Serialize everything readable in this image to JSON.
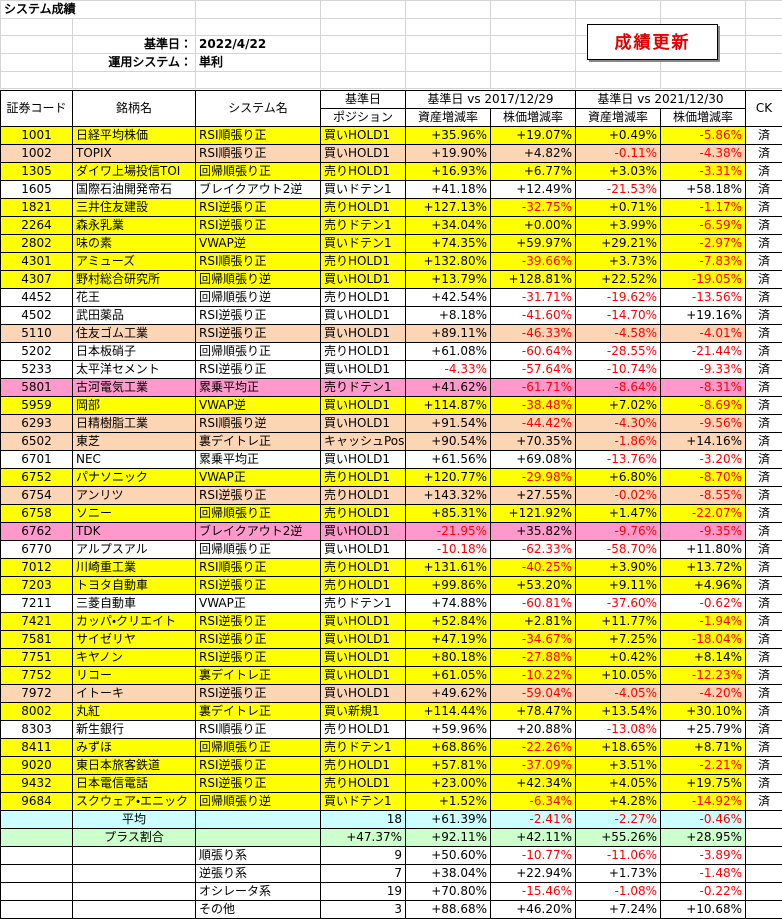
{
  "header": {
    "title": "システム成績",
    "button": "成績更新",
    "base_date_label": "基準日：",
    "base_date": "2022/4/22",
    "system_label": "運用システム：",
    "system": "単利"
  },
  "table": {
    "columns": [
      "証券コード",
      "銘柄名",
      "システム名",
      "ポジション",
      "資産増減率",
      "株価増減率",
      "資産増減率",
      "株価増減率",
      "CK"
    ],
    "groups": [
      "基準日",
      "基準日 vs 2017/12/29",
      "基準日 vs 2021/12/30"
    ],
    "rows": [
      {
        "code": "1001",
        "name": "日経平均株価",
        "system": "RSI順張り正",
        "position": "買いHOLD1",
        "values": [
          "+35.96%",
          "+19.07%",
          "+0.49%",
          "-5.86%"
        ],
        "ck": "済",
        "color": "#ffff00"
      },
      {
        "code": "1002",
        "name": "TOPIX",
        "system": "RSI順張り正",
        "position": "買いHOLD1",
        "values": [
          "+19.90%",
          "+4.82%",
          "-0.11%",
          "-4.38%"
        ],
        "ck": "済",
        "color": "#fcd5b4"
      },
      {
        "code": "1305",
        "name": "ダイワ上場投信TOI",
        "system": "回帰順張り正",
        "position": "売りHOLD1",
        "values": [
          "+16.93%",
          "+6.77%",
          "+3.03%",
          "-3.31%"
        ],
        "ck": "済",
        "color": "#ffff00"
      },
      {
        "code": "1605",
        "name": "国際石油開発帝石",
        "system": "ブレイクアウト2逆",
        "position": "買いドテン1",
        "values": [
          "+41.18%",
          "+12.49%",
          "-21.53%",
          "+58.18%"
        ],
        "ck": "済",
        "color": "#ffffff"
      },
      {
        "code": "1821",
        "name": "三井住友建設",
        "system": "RSI逆張り正",
        "position": "売りHOLD1",
        "values": [
          "+127.13%",
          "-32.75%",
          "+0.71%",
          "-1.17%"
        ],
        "ck": "済",
        "color": "#ffff00"
      },
      {
        "code": "2264",
        "name": "森永乳業",
        "system": "RSI逆張り正",
        "position": "売りドテン1",
        "values": [
          "+34.04%",
          "+0.00%",
          "+3.99%",
          "-6.59%"
        ],
        "ck": "済",
        "color": "#ffff00"
      },
      {
        "code": "2802",
        "name": "味の素",
        "system": "VWAP逆",
        "position": "買いドテン1",
        "values": [
          "+74.35%",
          "+59.97%",
          "+29.21%",
          "-2.97%"
        ],
        "ck": "済",
        "color": "#ffff00"
      },
      {
        "code": "4301",
        "name": "アミューズ",
        "system": "RSI順張り正",
        "position": "売りHOLD1",
        "values": [
          "+132.80%",
          "-39.66%",
          "+3.73%",
          "-7.83%"
        ],
        "ck": "済",
        "color": "#ffff00"
      },
      {
        "code": "4307",
        "name": "野村総合研究所",
        "system": "回帰順張り逆",
        "position": "買いHOLD1",
        "values": [
          "+13.79%",
          "+128.81%",
          "+22.52%",
          "-19.05%"
        ],
        "ck": "済",
        "color": "#ffff00"
      },
      {
        "code": "4452",
        "name": "花王",
        "system": "回帰順張り逆",
        "position": "売りHOLD1",
        "values": [
          "+42.54%",
          "-31.71%",
          "-19.62%",
          "-13.56%"
        ],
        "ck": "済",
        "color": "#ffffff"
      },
      {
        "code": "4502",
        "name": "武田薬品",
        "system": "RSI逆張り正",
        "position": "買いHOLD1",
        "values": [
          "+8.18%",
          "-41.60%",
          "-14.70%",
          "+19.16%"
        ],
        "ck": "済",
        "color": "#ffffff"
      },
      {
        "code": "5110",
        "name": "住友ゴム工業",
        "system": "RSI逆張り正",
        "position": "買いHOLD1",
        "values": [
          "+89.11%",
          "-46.33%",
          "-4.58%",
          "-4.01%"
        ],
        "ck": "済",
        "color": "#fcd5b4"
      },
      {
        "code": "5202",
        "name": "日本板硝子",
        "system": "回帰順張り正",
        "position": "売りHOLD1",
        "values": [
          "+61.08%",
          "-60.64%",
          "-28.55%",
          "-21.44%"
        ],
        "ck": "済",
        "color": "#ffffff"
      },
      {
        "code": "5233",
        "name": "太平洋セメント",
        "system": "RSI逆張り正",
        "position": "買いHOLD1",
        "values": [
          "-4.33%",
          "-57.64%",
          "-10.74%",
          "-9.33%"
        ],
        "ck": "済",
        "color": "#ffffff"
      },
      {
        "code": "5801",
        "name": "古河電気工業",
        "system": "累乗平均正",
        "position": "売りドテン1",
        "values": [
          "+41.62%",
          "-61.71%",
          "-8.64%",
          "-8.31%"
        ],
        "ck": "済",
        "color": "#ff99cc"
      },
      {
        "code": "5959",
        "name": "岡部",
        "system": "VWAP逆",
        "position": "買いHOLD1",
        "values": [
          "+114.87%",
          "-38.48%",
          "+7.02%",
          "-8.69%"
        ],
        "ck": "済",
        "color": "#ffff00"
      },
      {
        "code": "6293",
        "name": "日精樹脂工業",
        "system": "RSI順張り逆",
        "position": "買いHOLD1",
        "values": [
          "+91.54%",
          "-44.42%",
          "-4.30%",
          "-9.56%"
        ],
        "ck": "済",
        "color": "#fcd5b4"
      },
      {
        "code": "6502",
        "name": "東芝",
        "system": "裏デイトレ正",
        "position": "キャッシュPos",
        "values": [
          "+90.54%",
          "+70.35%",
          "-1.86%",
          "+14.16%"
        ],
        "ck": "済",
        "color": "#fcd5b4"
      },
      {
        "code": "6701",
        "name": "NEC",
        "system": "累乗平均正",
        "position": "買いHOLD1",
        "values": [
          "+61.56%",
          "+69.08%",
          "-13.76%",
          "-3.20%"
        ],
        "ck": "済",
        "color": "#ffffff"
      },
      {
        "code": "6752",
        "name": "パナソニック",
        "system": "VWAP正",
        "position": "売りHOLD1",
        "values": [
          "+120.77%",
          "-29.98%",
          "+6.80%",
          "-8.70%"
        ],
        "ck": "済",
        "color": "#ffff00"
      },
      {
        "code": "6754",
        "name": "アンリツ",
        "system": "RSI逆張り正",
        "position": "売りHOLD1",
        "values": [
          "+143.32%",
          "+27.55%",
          "-0.02%",
          "-8.55%"
        ],
        "ck": "済",
        "color": "#fcd5b4"
      },
      {
        "code": "6758",
        "name": "ソニー",
        "system": "回帰順張り正",
        "position": "売りHOLD1",
        "values": [
          "+85.31%",
          "+121.92%",
          "+1.47%",
          "-22.07%"
        ],
        "ck": "済",
        "color": "#ffff00"
      },
      {
        "code": "6762",
        "name": "TDK",
        "system": "ブレイクアウト2逆",
        "position": "買いHOLD1",
        "values": [
          "-21.95%",
          "+35.82%",
          "-9.76%",
          "-9.35%"
        ],
        "ck": "済",
        "color": "#ff99cc"
      },
      {
        "code": "6770",
        "name": "アルプスアル",
        "system": "回帰順張り正",
        "position": "買いHOLD1",
        "values": [
          "-10.18%",
          "-62.33%",
          "-58.70%",
          "+11.80%"
        ],
        "ck": "済",
        "color": "#ffffff"
      },
      {
        "code": "7012",
        "name": "川崎重工業",
        "system": "RSI順張り正",
        "position": "売りHOLD1",
        "values": [
          "+131.61%",
          "-40.25%",
          "+3.90%",
          "+13.72%"
        ],
        "ck": "済",
        "color": "#ffff00"
      },
      {
        "code": "7203",
        "name": "トヨタ自動車",
        "system": "RSI逆張り正",
        "position": "売りHOLD1",
        "values": [
          "+99.86%",
          "+53.20%",
          "+9.11%",
          "+4.96%"
        ],
        "ck": "済",
        "color": "#ffff00"
      },
      {
        "code": "7211",
        "name": "三菱自動車",
        "system": "VWAP正",
        "position": "売りドテン1",
        "values": [
          "+74.88%",
          "-60.81%",
          "-37.60%",
          "-0.62%"
        ],
        "ck": "済",
        "color": "#ffffff"
      },
      {
        "code": "7421",
        "name": "カッパ・クリエイト",
        "system": "RSI逆張り正",
        "position": "買いHOLD1",
        "values": [
          "+52.84%",
          "+2.81%",
          "+11.77%",
          "-1.94%"
        ],
        "ck": "済",
        "color": "#ffff00"
      },
      {
        "code": "7581",
        "name": "サイゼリヤ",
        "system": "RSI逆張り正",
        "position": "買いHOLD1",
        "values": [
          "+47.19%",
          "-34.67%",
          "+7.25%",
          "-18.04%"
        ],
        "ck": "済",
        "color": "#ffff00"
      },
      {
        "code": "7751",
        "name": "キヤノン",
        "system": "RSI逆張り正",
        "position": "買いHOLD1",
        "values": [
          "+80.18%",
          "-27.88%",
          "+0.42%",
          "+8.14%"
        ],
        "ck": "済",
        "color": "#ffff00"
      },
      {
        "code": "7752",
        "name": "リコー",
        "system": "裏デイトレ正",
        "position": "買いHOLD1",
        "values": [
          "+61.05%",
          "-10.22%",
          "+10.05%",
          "-12.23%"
        ],
        "ck": "済",
        "color": "#ffff00"
      },
      {
        "code": "7972",
        "name": "イトーキ",
        "system": "RSI逆張り正",
        "position": "買いHOLD1",
        "values": [
          "+49.62%",
          "-59.04%",
          "-4.05%",
          "-4.20%"
        ],
        "ck": "済",
        "color": "#fcd5b4"
      },
      {
        "code": "8002",
        "name": "丸紅",
        "system": "裏デイトレ正",
        "position": "買い新規1",
        "values": [
          "+114.44%",
          "+78.47%",
          "+13.54%",
          "+30.10%"
        ],
        "ck": "済",
        "color": "#ffff00"
      },
      {
        "code": "8303",
        "name": "新生銀行",
        "system": "RSI順張り正",
        "position": "売りHOLD1",
        "values": [
          "+59.96%",
          "+20.88%",
          "-13.08%",
          "+25.79%"
        ],
        "ck": "済",
        "color": "#ffffff"
      },
      {
        "code": "8411",
        "name": "みずほ",
        "system": "回帰順張り正",
        "position": "売りドテン1",
        "values": [
          "+68.86%",
          "-22.26%",
          "+18.65%",
          "+8.71%"
        ],
        "ck": "済",
        "color": "#ffff00"
      },
      {
        "code": "9020",
        "name": "東日本旅客鉄道",
        "system": "RSI逆張り正",
        "position": "売りHOLD1",
        "values": [
          "+57.81%",
          "-37.09%",
          "+3.51%",
          "-2.21%"
        ],
        "ck": "済",
        "color": "#ffff00"
      },
      {
        "code": "9432",
        "name": "日本電信電話",
        "system": "RSI逆張り正",
        "position": "売りHOLD1",
        "values": [
          "+23.00%",
          "+42.34%",
          "+4.05%",
          "+19.75%"
        ],
        "ck": "済",
        "color": "#ffff00"
      },
      {
        "code": "9684",
        "name": "スクウェア・エニック",
        "system": "回帰順張り逆",
        "position": "買いドテン1",
        "values": [
          "+1.52%",
          "-6.34%",
          "+4.28%",
          "-14.92%"
        ],
        "ck": "済",
        "color": "#ffff00"
      }
    ],
    "summary": [
      {
        "label": "平均",
        "count": 18,
        "values": [
          "+61.39%",
          "-2.41%",
          "-2.27%",
          "-0.46%"
        ],
        "color": "#ccffff"
      },
      {
        "label": "プラス割合",
        "count": "+47.37%",
        "values": [
          "+92.11%",
          "+42.11%",
          "+55.26%",
          "+28.95%"
        ],
        "color": "#ccffcc"
      },
      {
        "label": "順張り系",
        "count": 9,
        "values": [
          "+50.60%",
          "-10.77%",
          "-11.06%",
          "-3.89%"
        ]
      },
      {
        "label": "逆張り系",
        "count": 7,
        "values": [
          "+38.04%",
          "+22.94%",
          "+1.73%",
          "-1.48%"
        ]
      },
      {
        "label": "オシレータ系",
        "count": 19,
        "values": [
          "+70.80%",
          "-15.46%",
          "-1.08%",
          "-0.22%"
        ]
      },
      {
        "label": "その他",
        "count": 3,
        "values": [
          "+88.68%",
          "+46.20%",
          "+7.24%",
          "+10.68%"
        ]
      }
    ]
  }
}
